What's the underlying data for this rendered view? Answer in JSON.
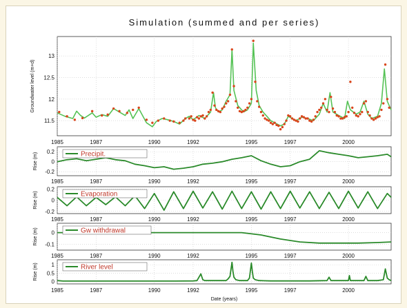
{
  "chart_data": [
    {
      "type": "line+scatter",
      "title": "Simulation (summed and per series)",
      "ylabel": "Groundwater level (m+d)",
      "xlim": [
        1985,
        2002.2
      ],
      "ylim": [
        11.15,
        13.45
      ],
      "yticks": [
        "11.5",
        "12",
        "12.5",
        "13"
      ],
      "xticks": [
        "1985",
        "1987",
        "1990",
        "1992",
        "1995",
        "1997",
        "2000"
      ],
      "grid": true,
      "series": [
        {
          "color": "#55c255",
          "style": "line",
          "x": [
            1985.0,
            1985.4,
            1985.8,
            1986.0,
            1986.2,
            1986.4,
            1986.8,
            1987.0,
            1987.3,
            1987.6,
            1987.9,
            1988.2,
            1988.5,
            1988.7,
            1988.9,
            1989.2,
            1989.6,
            1989.9,
            1990.1,
            1990.4,
            1990.7,
            1991.0,
            1991.3,
            1991.6,
            1991.8,
            1992.0,
            1992.3,
            1992.6,
            1992.9,
            1993.05,
            1993.15,
            1993.3,
            1993.5,
            1993.7,
            1993.9,
            1994.0,
            1994.1,
            1994.3,
            1994.6,
            1994.8,
            1995.0,
            1995.1,
            1995.25,
            1995.4,
            1995.6,
            1995.8,
            1996.0,
            1996.2,
            1996.5,
            1996.7,
            1996.9,
            1997.1,
            1997.3,
            1997.6,
            1997.9,
            1998.2,
            1998.5,
            1998.7,
            1998.9,
            1999.05,
            1999.2,
            1999.5,
            1999.8,
            1999.95,
            2000.1,
            2000.4,
            2000.6,
            2000.8,
            2001.0,
            2001.2,
            2001.5,
            2001.7,
            2001.85,
            2002.0,
            2002.2
          ],
          "y": [
            11.68,
            11.6,
            11.55,
            11.72,
            11.62,
            11.56,
            11.68,
            11.58,
            11.64,
            11.6,
            11.78,
            11.7,
            11.62,
            11.75,
            11.55,
            11.78,
            11.45,
            11.36,
            11.48,
            11.55,
            11.52,
            11.48,
            11.42,
            11.55,
            11.6,
            11.52,
            11.62,
            11.55,
            11.7,
            12.15,
            11.8,
            11.7,
            11.75,
            11.95,
            12.1,
            13.15,
            12.2,
            11.85,
            11.7,
            11.75,
            11.9,
            13.3,
            12.2,
            11.85,
            11.7,
            11.6,
            11.5,
            11.45,
            11.38,
            11.42,
            11.6,
            11.55,
            11.5,
            11.58,
            11.55,
            11.5,
            11.65,
            11.9,
            11.7,
            12.15,
            11.7,
            11.62,
            11.55,
            11.95,
            11.75,
            11.65,
            11.7,
            11.95,
            11.65,
            11.55,
            11.6,
            11.9,
            12.7,
            11.95,
            11.75
          ]
        },
        {
          "color": "#d9461c",
          "style": "markers",
          "x": [
            1985.1,
            1985.5,
            1985.9,
            1986.3,
            1986.8,
            1987.3,
            1987.6,
            1987.9,
            1988.2,
            1988.6,
            1988.9,
            1989.2,
            1989.6,
            1989.9,
            1990.2,
            1990.5,
            1990.8,
            1991.0,
            1991.3,
            1991.5,
            1991.6,
            1991.8,
            1991.9,
            1992.0,
            1992.1,
            1992.2,
            1992.3,
            1992.4,
            1992.5,
            1992.6,
            1992.7,
            1992.8,
            1992.9,
            1993.0,
            1993.1,
            1993.2,
            1993.3,
            1993.4,
            1993.5,
            1993.6,
            1993.7,
            1993.8,
            1993.9,
            1994.0,
            1994.1,
            1994.2,
            1994.3,
            1994.4,
            1994.5,
            1994.6,
            1994.7,
            1994.8,
            1994.9,
            1995.0,
            1995.1,
            1995.2,
            1995.3,
            1995.4,
            1995.5,
            1995.6,
            1995.7,
            1995.8,
            1995.9,
            1996.0,
            1996.1,
            1996.2,
            1996.3,
            1996.4,
            1996.5,
            1996.6,
            1996.7,
            1996.8,
            1996.9,
            1997.0,
            1997.1,
            1997.2,
            1997.3,
            1997.4,
            1997.5,
            1997.6,
            1997.7,
            1997.8,
            1997.9,
            1998.0,
            1998.1,
            1998.2,
            1998.3,
            1998.4,
            1998.5,
            1998.6,
            1998.7,
            1998.8,
            1998.9,
            1999.0,
            1999.1,
            1999.2,
            1999.3,
            1999.4,
            1999.5,
            1999.6,
            1999.7,
            1999.8,
            1999.9,
            2000.0,
            2000.1,
            2000.2,
            2000.3,
            2000.4,
            2000.5,
            2000.6,
            2000.7,
            2000.8,
            2000.9,
            2001.0,
            2001.1,
            2001.2,
            2001.3,
            2001.4,
            2001.5,
            2001.6,
            2001.7,
            2001.8,
            2001.9,
            2002.0,
            2002.1
          ],
          "y": [
            11.7,
            11.6,
            11.52,
            11.56,
            11.72,
            11.62,
            11.64,
            11.78,
            11.72,
            11.68,
            11.75,
            11.8,
            11.52,
            11.45,
            11.5,
            11.55,
            11.5,
            11.48,
            11.45,
            11.5,
            11.55,
            11.55,
            11.6,
            11.52,
            11.5,
            11.58,
            11.55,
            11.6,
            11.62,
            11.55,
            11.6,
            11.7,
            11.75,
            12.15,
            11.85,
            11.75,
            11.72,
            11.7,
            11.78,
            11.82,
            11.9,
            11.95,
            12.1,
            13.15,
            12.3,
            11.95,
            11.8,
            11.72,
            11.7,
            11.72,
            11.75,
            11.8,
            11.9,
            12.0,
            13.35,
            12.4,
            11.95,
            11.82,
            11.7,
            11.62,
            11.55,
            11.52,
            11.5,
            11.45,
            11.42,
            11.45,
            11.4,
            11.38,
            11.3,
            11.35,
            11.42,
            11.5,
            11.62,
            11.6,
            11.55,
            11.52,
            11.5,
            11.48,
            11.55,
            11.6,
            11.58,
            11.55,
            11.55,
            11.5,
            11.48,
            11.52,
            11.6,
            11.7,
            11.75,
            11.8,
            11.9,
            12.0,
            11.75,
            11.7,
            12.05,
            11.78,
            11.7,
            11.62,
            11.6,
            11.55,
            11.55,
            11.58,
            11.6,
            11.7,
            12.4,
            11.8,
            11.68,
            11.62,
            11.6,
            11.65,
            11.7,
            11.9,
            11.95,
            11.7,
            11.62,
            11.55,
            11.52,
            11.55,
            11.58,
            11.6,
            11.75,
            11.9,
            12.8,
            12.0,
            11.8
          ]
        }
      ]
    },
    {
      "type": "line",
      "ylabel": "Rise (m)",
      "legend": "Precipit.",
      "ylim": [
        -0.28,
        0.3
      ],
      "yticks": [
        "0.2",
        "0",
        "-0.2"
      ],
      "series": [
        {
          "color": "#2a8a2a",
          "x": [
            1985,
            1985.5,
            1986,
            1986.5,
            1987,
            1987.5,
            1988,
            1988.5,
            1989,
            1989.5,
            1990,
            1990.5,
            1991,
            1991.5,
            1992,
            1992.5,
            1993,
            1993.5,
            1994,
            1994.5,
            1995,
            1995.5,
            1996,
            1996.5,
            1997,
            1997.5,
            1998,
            1998.5,
            1999,
            1999.5,
            2000,
            2000.5,
            2001,
            2001.5,
            2002,
            2002.2
          ],
          "y": [
            0.0,
            0.04,
            0.06,
            0.02,
            0.05,
            0.08,
            0.04,
            0.02,
            -0.05,
            -0.08,
            -0.12,
            -0.1,
            -0.15,
            -0.13,
            -0.1,
            -0.05,
            -0.03,
            0.0,
            0.05,
            0.08,
            0.12,
            0.02,
            -0.05,
            -0.1,
            -0.08,
            0.0,
            0.05,
            0.22,
            0.18,
            0.15,
            0.12,
            0.08,
            0.1,
            0.12,
            0.15,
            0.1
          ]
        }
      ]
    },
    {
      "type": "line",
      "ylabel": "Rise (m)",
      "legend": "Evaporation",
      "ylim": [
        -0.24,
        0.24
      ],
      "yticks": [
        "0.2",
        "0",
        "-0.2"
      ],
      "series": [
        {
          "color": "#2a8a2a",
          "x": [
            1985,
            1985.5,
            1986,
            1986.5,
            1987,
            1987.5,
            1988,
            1988.5,
            1989,
            1989.5,
            1990,
            1990.5,
            1991,
            1991.5,
            1992,
            1992.5,
            1993,
            1993.5,
            1994,
            1994.5,
            1995,
            1995.5,
            1996,
            1996.5,
            1997,
            1997.5,
            1998,
            1998.5,
            1999,
            1999.5,
            2000,
            2000.5,
            2001,
            2001.5,
            2002,
            2002.2
          ],
          "y": [
            0.05,
            -0.1,
            0.06,
            -0.1,
            0.05,
            -0.08,
            0.06,
            -0.1,
            0.08,
            -0.15,
            0.12,
            -0.18,
            0.15,
            -0.15,
            0.16,
            -0.14,
            0.15,
            -0.16,
            0.16,
            -0.15,
            0.15,
            -0.16,
            0.15,
            -0.15,
            0.16,
            -0.14,
            0.15,
            -0.15,
            0.14,
            -0.15,
            0.16,
            -0.14,
            0.15,
            -0.15,
            0.12,
            0.05
          ]
        }
      ]
    },
    {
      "type": "line",
      "ylabel": "Rise (m)",
      "legend": "Gw withdrawal",
      "ylim": [
        -0.15,
        0.08
      ],
      "yticks": [
        "0",
        "-0.1"
      ],
      "series": [
        {
          "color": "#2a8a2a",
          "x": [
            1985,
            1990,
            1994.5,
            1995.5,
            1996.5,
            1997.5,
            1998.5,
            1999.5,
            2000.5,
            2001.5,
            2002.2
          ],
          "y": [
            0.0,
            0.0,
            0.0,
            -0.02,
            -0.055,
            -0.08,
            -0.09,
            -0.09,
            -0.09,
            -0.085,
            -0.08
          ]
        }
      ]
    },
    {
      "type": "line",
      "ylabel": "Rise (m)",
      "legend": "River level",
      "ylim": [
        -0.15,
        1.3
      ],
      "yticks": [
        "1",
        "0.5",
        "0"
      ],
      "xlabel": "Date (years)",
      "series": [
        {
          "color": "#2a8a2a",
          "x": [
            1985,
            1985.3,
            1987,
            1990,
            1991,
            1992,
            1992.2,
            1992.4,
            1992.5,
            1992.6,
            1993,
            1993.7,
            1993.8,
            1993.9,
            1994.0,
            1994.05,
            1994.1,
            1994.2,
            1994.4,
            1994.8,
            1994.9,
            1995.0,
            1995.05,
            1995.1,
            1995.2,
            1995.4,
            1996,
            1997,
            1998,
            1998.9,
            1999.0,
            1999.1,
            1999.5,
            2000.0,
            2000.05,
            2000.1,
            2000.5,
            2000.8,
            2000.9,
            2001.0,
            2001.5,
            2001.8,
            2001.9,
            2002.0,
            2002.1,
            2002.2
          ],
          "y": [
            0.05,
            0.02,
            0.02,
            0.02,
            0.02,
            0.03,
            0.05,
            0.45,
            0.1,
            0.05,
            0.05,
            0.05,
            0.15,
            0.3,
            1.15,
            0.6,
            0.25,
            0.1,
            0.05,
            0.05,
            0.2,
            1.1,
            0.6,
            0.2,
            0.1,
            0.05,
            0.03,
            0.03,
            0.03,
            0.05,
            0.25,
            0.05,
            0.05,
            0.05,
            0.35,
            0.05,
            0.05,
            0.05,
            0.3,
            0.05,
            0.05,
            0.1,
            0.75,
            0.2,
            0.1,
            0.05
          ]
        }
      ]
    }
  ]
}
